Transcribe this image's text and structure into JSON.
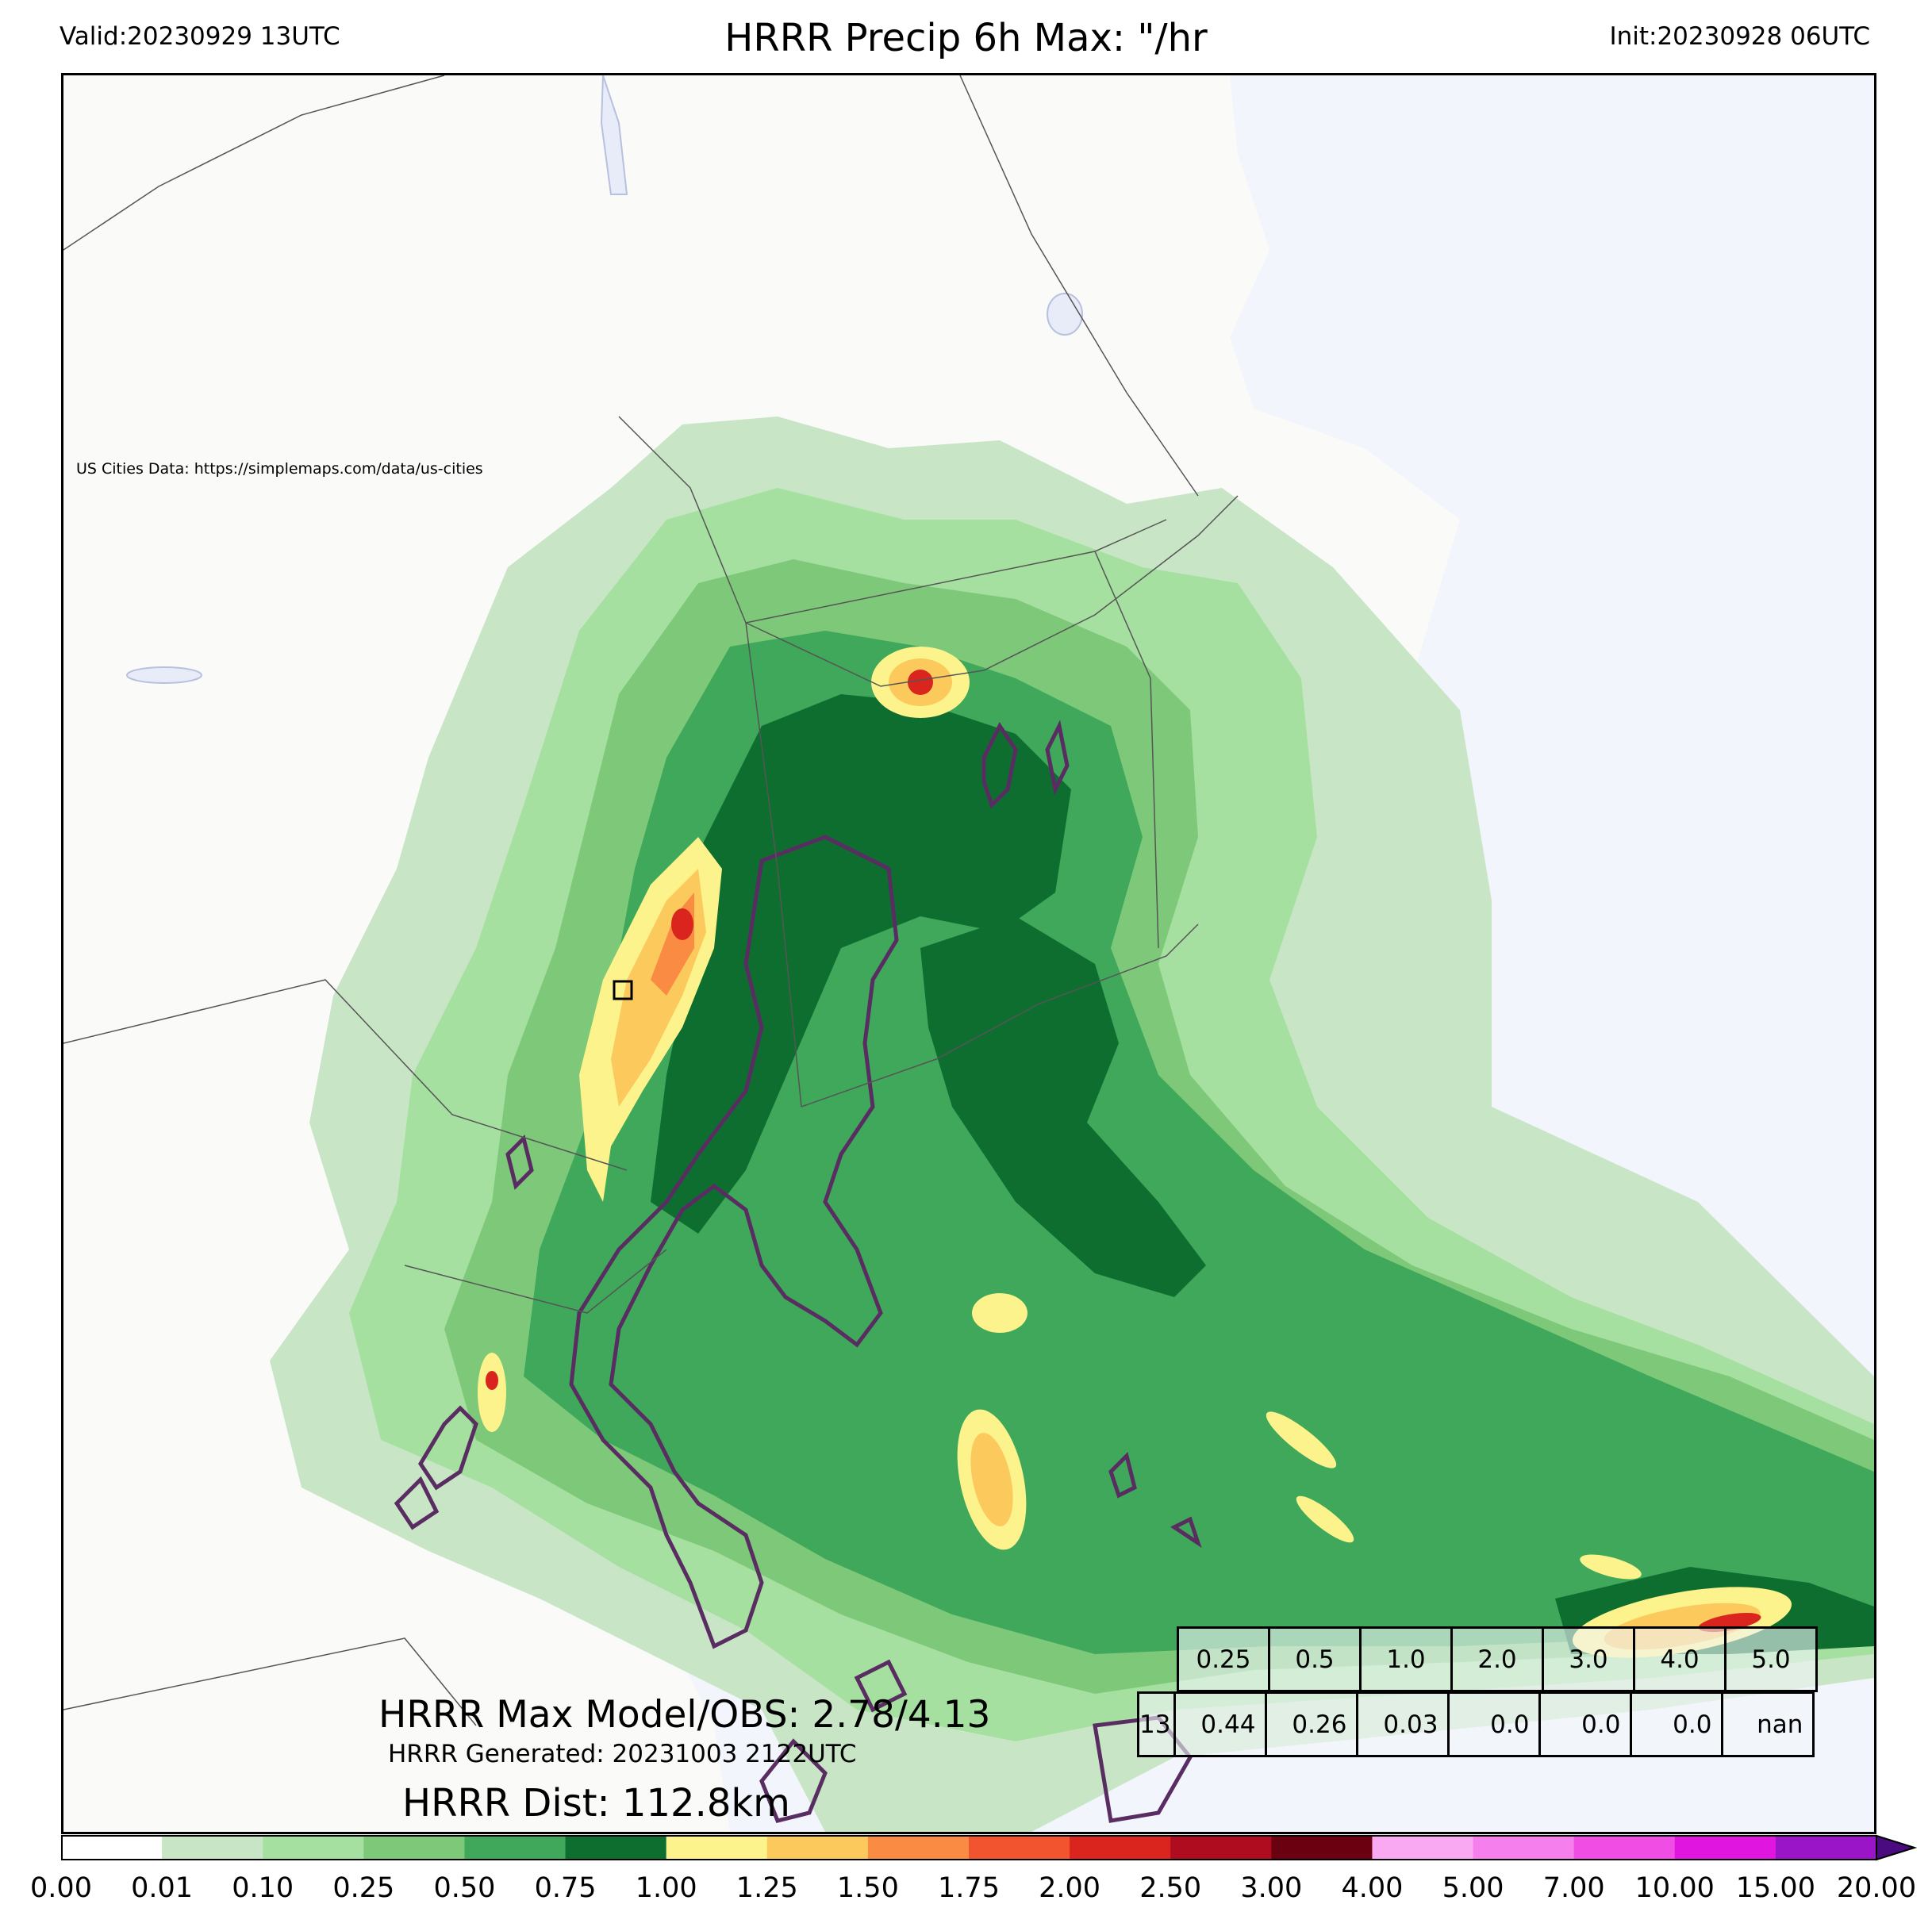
{
  "header": {
    "valid": "Valid:20230929 13UTC",
    "title": "HRRR Precip 6h Max: \"/hr",
    "init": "Init:20230928 06UTC"
  },
  "map": {
    "credit": "US Cities Data: https://simplemaps.com/data/us-cities",
    "land_color": "#fafaf8",
    "water_color": "#f2f5fb"
  },
  "stats": {
    "max_line": "HRRR Max Model/OBS: 2.78/4.13",
    "generated_line": "HRRR Generated: 20231003 2122UTC",
    "dist_line": "HRRR Dist: 112.8km"
  },
  "threshold_table": {
    "thresholds": [
      "0.25",
      "0.5",
      "1.0",
      "2.0",
      "3.0",
      "4.0",
      "5.0"
    ],
    "row_label": "13",
    "values": [
      "0.44",
      "0.26",
      "0.03",
      "0.0",
      "0.0",
      "0.0",
      "nan"
    ]
  },
  "colorbar": {
    "ticks": [
      "0.00",
      "0.01",
      "0.10",
      "0.25",
      "0.50",
      "0.75",
      "1.00",
      "1.25",
      "1.50",
      "1.75",
      "2.00",
      "2.50",
      "3.00",
      "4.00",
      "5.00",
      "7.00",
      "10.00",
      "15.00",
      "20.00"
    ],
    "colors": [
      "#ffffff",
      "#c8e6c6",
      "#a6e0a0",
      "#7ec87a",
      "#3fa85a",
      "#0e6e30",
      "#fdf38c",
      "#fbc95c",
      "#f98c42",
      "#f25430",
      "#d9251e",
      "#b00c1f",
      "#6a0010",
      "#f9a8f2",
      "#f67fee",
      "#f04de4",
      "#e016e0",
      "#9a14c8"
    ],
    "extend_color": "#4a0a80"
  }
}
